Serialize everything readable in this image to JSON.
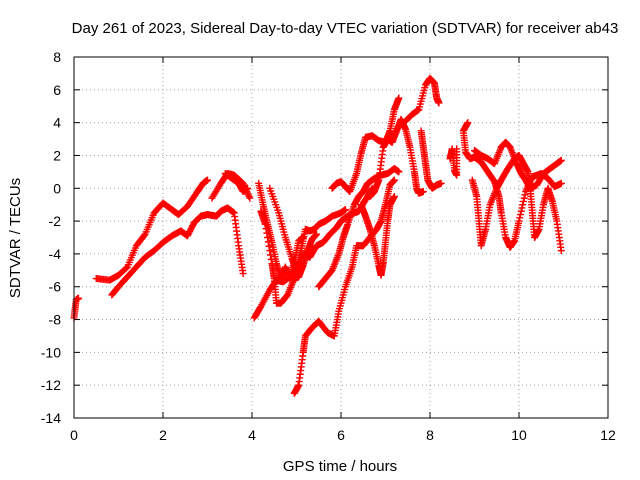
{
  "chart_data": {
    "type": "scatter",
    "title": "Day 261 of 2023, Sidereal Day-to-day VTEC variation (SDTVAR) for receiver ab43",
    "xlabel": "GPS time / hours",
    "ylabel": "SDTVAR / TECUs",
    "xlim": [
      0,
      12
    ],
    "ylim": [
      -14,
      8
    ],
    "xticks": [
      0,
      2,
      4,
      6,
      8,
      10,
      12
    ],
    "yticks": [
      -14,
      -12,
      -10,
      -8,
      -6,
      -4,
      -2,
      0,
      2,
      4,
      6,
      8
    ],
    "grid": true,
    "marker": "+",
    "color": "#ff0000",
    "series": [
      {
        "name": "trace-a",
        "points": [
          [
            0.0,
            -7.9
          ],
          [
            0.05,
            -6.8
          ],
          [
            0.1,
            -6.7
          ]
        ]
      },
      {
        "name": "trace-b",
        "points": [
          [
            0.5,
            -5.5
          ],
          [
            0.8,
            -5.6
          ],
          [
            1.0,
            -5.3
          ],
          [
            1.2,
            -4.8
          ],
          [
            1.4,
            -3.5
          ],
          [
            1.6,
            -2.8
          ],
          [
            1.8,
            -1.5
          ],
          [
            2.0,
            -0.9
          ],
          [
            2.2,
            -1.3
          ],
          [
            2.35,
            -1.6
          ],
          [
            2.55,
            -1.1
          ],
          [
            2.75,
            -0.3
          ],
          [
            2.9,
            0.3
          ],
          [
            3.0,
            0.5
          ]
        ]
      },
      {
        "name": "trace-c",
        "points": [
          [
            0.85,
            -6.5
          ],
          [
            1.0,
            -6.0
          ],
          [
            1.2,
            -5.4
          ],
          [
            1.4,
            -4.8
          ],
          [
            1.6,
            -4.2
          ],
          [
            1.8,
            -3.8
          ],
          [
            2.0,
            -3.3
          ],
          [
            2.2,
            -2.9
          ],
          [
            2.4,
            -2.6
          ],
          [
            2.55,
            -2.9
          ],
          [
            2.7,
            -2.1
          ],
          [
            2.85,
            -1.7
          ],
          [
            3.0,
            -1.6
          ],
          [
            3.2,
            -1.7
          ],
          [
            3.3,
            -1.4
          ],
          [
            3.45,
            -1.2
          ],
          [
            3.6,
            -1.5
          ],
          [
            3.7,
            -3.5
          ],
          [
            3.8,
            -5.2
          ]
        ]
      },
      {
        "name": "trace-d",
        "points": [
          [
            3.1,
            -0.6
          ],
          [
            3.3,
            0.3
          ],
          [
            3.45,
            0.9
          ],
          [
            3.6,
            0.8
          ],
          [
            3.8,
            0.3
          ],
          [
            3.95,
            -0.6
          ]
        ]
      },
      {
        "name": "trace-e",
        "points": [
          [
            3.4,
            0.9
          ],
          [
            3.55,
            0.6
          ],
          [
            3.7,
            0.3
          ],
          [
            3.8,
            -0.2
          ],
          [
            3.9,
            0.0
          ]
        ]
      },
      {
        "name": "trace-f",
        "points": [
          [
            4.15,
            0.3
          ],
          [
            4.25,
            -1.0
          ],
          [
            4.35,
            -2.2
          ],
          [
            4.45,
            -3.3
          ],
          [
            4.55,
            -4.6
          ],
          [
            4.65,
            -5.5
          ],
          [
            4.75,
            -4.8
          ],
          [
            4.85,
            -5.5
          ],
          [
            4.95,
            -4.5
          ],
          [
            5.05,
            -3.2
          ],
          [
            5.15,
            -3.0
          ]
        ]
      },
      {
        "name": "trace-g",
        "points": [
          [
            4.4,
            0.0
          ],
          [
            4.6,
            -1.5
          ],
          [
            4.75,
            -3.0
          ],
          [
            4.9,
            -4.3
          ],
          [
            5.0,
            -5.0
          ],
          [
            5.1,
            -3.8
          ],
          [
            5.2,
            -2.5
          ],
          [
            5.3,
            -2.6
          ],
          [
            5.4,
            -2.5
          ],
          [
            5.5,
            -2.2
          ],
          [
            5.65,
            -2.0
          ],
          [
            5.8,
            -1.7
          ],
          [
            6.0,
            -1.5
          ],
          [
            6.1,
            -1.3
          ]
        ]
      },
      {
        "name": "trace-h",
        "points": [
          [
            4.2,
            -1.4
          ],
          [
            4.3,
            -2.2
          ],
          [
            4.45,
            -4.6
          ],
          [
            4.5,
            -5.5
          ],
          [
            4.55,
            -7.0
          ],
          [
            4.65,
            -7.0
          ],
          [
            4.8,
            -6.5
          ],
          [
            4.95,
            -5.5
          ],
          [
            5.05,
            -5.4
          ],
          [
            5.15,
            -4.7
          ],
          [
            5.25,
            -3.8
          ],
          [
            5.35,
            -3.1
          ],
          [
            5.45,
            -2.8
          ]
        ]
      },
      {
        "name": "trace-i",
        "points": [
          [
            4.05,
            -7.9
          ],
          [
            4.2,
            -7.2
          ],
          [
            4.4,
            -6.2
          ],
          [
            4.55,
            -5.6
          ],
          [
            4.7,
            -5.7
          ],
          [
            4.85,
            -5.4
          ],
          [
            5.0,
            -5.2
          ],
          [
            5.15,
            -4.0
          ],
          [
            5.3,
            -4.2
          ],
          [
            5.45,
            -3.5
          ],
          [
            5.6,
            -3.3
          ],
          [
            5.75,
            -2.8
          ],
          [
            5.9,
            -2.4
          ],
          [
            6.0,
            -2.0
          ],
          [
            6.1,
            -1.8
          ],
          [
            6.2,
            -1.6
          ],
          [
            6.3,
            -1.5
          ],
          [
            6.4,
            -1.4
          ],
          [
            6.55,
            -0.7
          ],
          [
            6.7,
            0.0
          ]
        ]
      },
      {
        "name": "trace-j",
        "points": [
          [
            4.95,
            -12.5
          ],
          [
            5.05,
            -12.0
          ],
          [
            5.15,
            -10.0
          ],
          [
            5.2,
            -9.0
          ],
          [
            5.35,
            -8.5
          ],
          [
            5.5,
            -8.1
          ],
          [
            5.7,
            -8.8
          ],
          [
            5.85,
            -9.0
          ],
          [
            5.95,
            -7.5
          ],
          [
            6.1,
            -6.0
          ],
          [
            6.25,
            -4.8
          ],
          [
            6.35,
            -3.5
          ],
          [
            6.5,
            -3.5
          ],
          [
            6.65,
            -3.0
          ],
          [
            6.8,
            -2.5
          ],
          [
            6.9,
            -2.0
          ],
          [
            7.0,
            -1.0
          ],
          [
            7.1,
            0.2
          ],
          [
            7.2,
            0.5
          ]
        ]
      },
      {
        "name": "trace-k",
        "points": [
          [
            5.5,
            -6.0
          ],
          [
            5.65,
            -5.5
          ],
          [
            5.8,
            -5.0
          ],
          [
            5.95,
            -4.0
          ],
          [
            6.05,
            -3.0
          ],
          [
            6.15,
            -2.2
          ],
          [
            6.3,
            -1.0
          ],
          [
            6.4,
            -0.5
          ],
          [
            6.5,
            -0.2
          ],
          [
            6.6,
            0.3
          ],
          [
            6.75,
            0.6
          ],
          [
            6.9,
            0.8
          ],
          [
            7.05,
            0.9
          ],
          [
            7.2,
            1.2
          ],
          [
            7.3,
            1.0
          ]
        ]
      },
      {
        "name": "trace-l",
        "points": [
          [
            5.8,
            0.0
          ],
          [
            5.9,
            0.3
          ],
          [
            6.0,
            0.4
          ],
          [
            6.1,
            0.1
          ],
          [
            6.2,
            -0.2
          ],
          [
            6.35,
            0.9
          ],
          [
            6.45,
            2.1
          ],
          [
            6.55,
            3.1
          ],
          [
            6.7,
            3.2
          ],
          [
            6.85,
            2.9
          ],
          [
            7.0,
            2.8
          ],
          [
            7.1,
            3.5
          ],
          [
            7.2,
            4.8
          ],
          [
            7.3,
            5.5
          ]
        ]
      },
      {
        "name": "trace-m",
        "points": [
          [
            6.45,
            -1.0
          ],
          [
            6.55,
            -1.7
          ],
          [
            6.65,
            -2.5
          ],
          [
            6.75,
            -3.5
          ],
          [
            6.85,
            -4.7
          ],
          [
            6.9,
            -5.3
          ],
          [
            6.95,
            -4.5
          ],
          [
            7.0,
            -3.3
          ],
          [
            7.05,
            -2.0
          ],
          [
            7.1,
            -1.0
          ],
          [
            7.2,
            -0.5
          ]
        ]
      },
      {
        "name": "trace-n",
        "points": [
          [
            6.65,
            -0.5
          ],
          [
            6.75,
            -0.2
          ],
          [
            6.85,
            0.5
          ],
          [
            6.95,
            2.5
          ],
          [
            7.05,
            3.0
          ],
          [
            7.15,
            2.8
          ],
          [
            7.25,
            3.5
          ],
          [
            7.35,
            4.2
          ],
          [
            7.45,
            3.6
          ],
          [
            7.55,
            2.5
          ],
          [
            7.65,
            1.0
          ],
          [
            7.7,
            0.0
          ],
          [
            7.75,
            -0.3
          ],
          [
            7.85,
            -0.2
          ]
        ]
      },
      {
        "name": "trace-o",
        "points": [
          [
            7.45,
            4.1
          ],
          [
            7.6,
            4.5
          ],
          [
            7.75,
            4.8
          ],
          [
            7.9,
            6.3
          ],
          [
            8.0,
            6.7
          ],
          [
            8.1,
            6.4
          ],
          [
            8.15,
            5.5
          ],
          [
            8.2,
            5.2
          ]
        ]
      },
      {
        "name": "trace-p",
        "points": [
          [
            7.8,
            3.5
          ],
          [
            7.85,
            2.5
          ],
          [
            7.9,
            1.5
          ],
          [
            7.95,
            0.5
          ],
          [
            8.05,
            0.0
          ],
          [
            8.15,
            0.2
          ],
          [
            8.25,
            0.3
          ]
        ]
      },
      {
        "name": "trace-q",
        "points": [
          [
            8.45,
            1.8
          ],
          [
            8.5,
            2.4
          ],
          [
            8.55,
            1.1
          ],
          [
            8.6,
            0.8
          ],
          [
            8.6,
            2.4
          ]
        ]
      },
      {
        "name": "trace-r",
        "points": [
          [
            8.85,
            4.0
          ],
          [
            8.75,
            3.5
          ],
          [
            8.8,
            2.2
          ],
          [
            8.9,
            1.8
          ],
          [
            9.0,
            1.9
          ],
          [
            9.15,
            1.6
          ],
          [
            9.3,
            1.0
          ],
          [
            9.45,
            0.4
          ],
          [
            9.55,
            -0.5
          ],
          [
            9.6,
            -1.5
          ],
          [
            9.7,
            -3.0
          ],
          [
            9.8,
            -3.6
          ],
          [
            9.9,
            -3.2
          ],
          [
            10.0,
            -2.0
          ],
          [
            10.15,
            -0.2
          ],
          [
            10.3,
            0.7
          ],
          [
            10.5,
            0.9
          ],
          [
            10.65,
            0.6
          ],
          [
            10.8,
            0.1
          ],
          [
            10.95,
            0.3
          ]
        ]
      },
      {
        "name": "trace-s",
        "points": [
          [
            8.95,
            0.5
          ],
          [
            9.05,
            -0.5
          ],
          [
            9.1,
            -2.0
          ],
          [
            9.15,
            -3.5
          ],
          [
            9.25,
            -2.5
          ],
          [
            9.35,
            -1.0
          ],
          [
            9.5,
            0.0
          ],
          [
            9.6,
            0.5
          ],
          [
            9.75,
            1.2
          ],
          [
            9.9,
            1.8
          ],
          [
            10.0,
            2.0
          ],
          [
            10.1,
            1.5
          ],
          [
            10.2,
            1.0
          ],
          [
            10.25,
            0.0
          ],
          [
            10.3,
            -1.5
          ],
          [
            10.35,
            -3.0
          ],
          [
            10.45,
            -2.5
          ],
          [
            10.55,
            -1.0
          ],
          [
            10.65,
            0.0
          ],
          [
            10.75,
            -0.8
          ],
          [
            10.85,
            -2.0
          ],
          [
            10.95,
            -3.8
          ]
        ]
      },
      {
        "name": "trace-t",
        "points": [
          [
            9.0,
            2.3
          ],
          [
            9.15,
            2.0
          ],
          [
            9.3,
            1.8
          ],
          [
            9.45,
            1.5
          ],
          [
            9.6,
            2.5
          ],
          [
            9.7,
            2.8
          ],
          [
            9.8,
            2.5
          ],
          [
            9.95,
            1.5
          ],
          [
            10.05,
            0.9
          ],
          [
            10.15,
            0.5
          ],
          [
            10.25,
            0.0
          ],
          [
            10.4,
            0.2
          ],
          [
            10.55,
            0.9
          ],
          [
            10.7,
            1.2
          ],
          [
            10.85,
            1.5
          ],
          [
            10.95,
            1.7
          ]
        ]
      }
    ]
  }
}
